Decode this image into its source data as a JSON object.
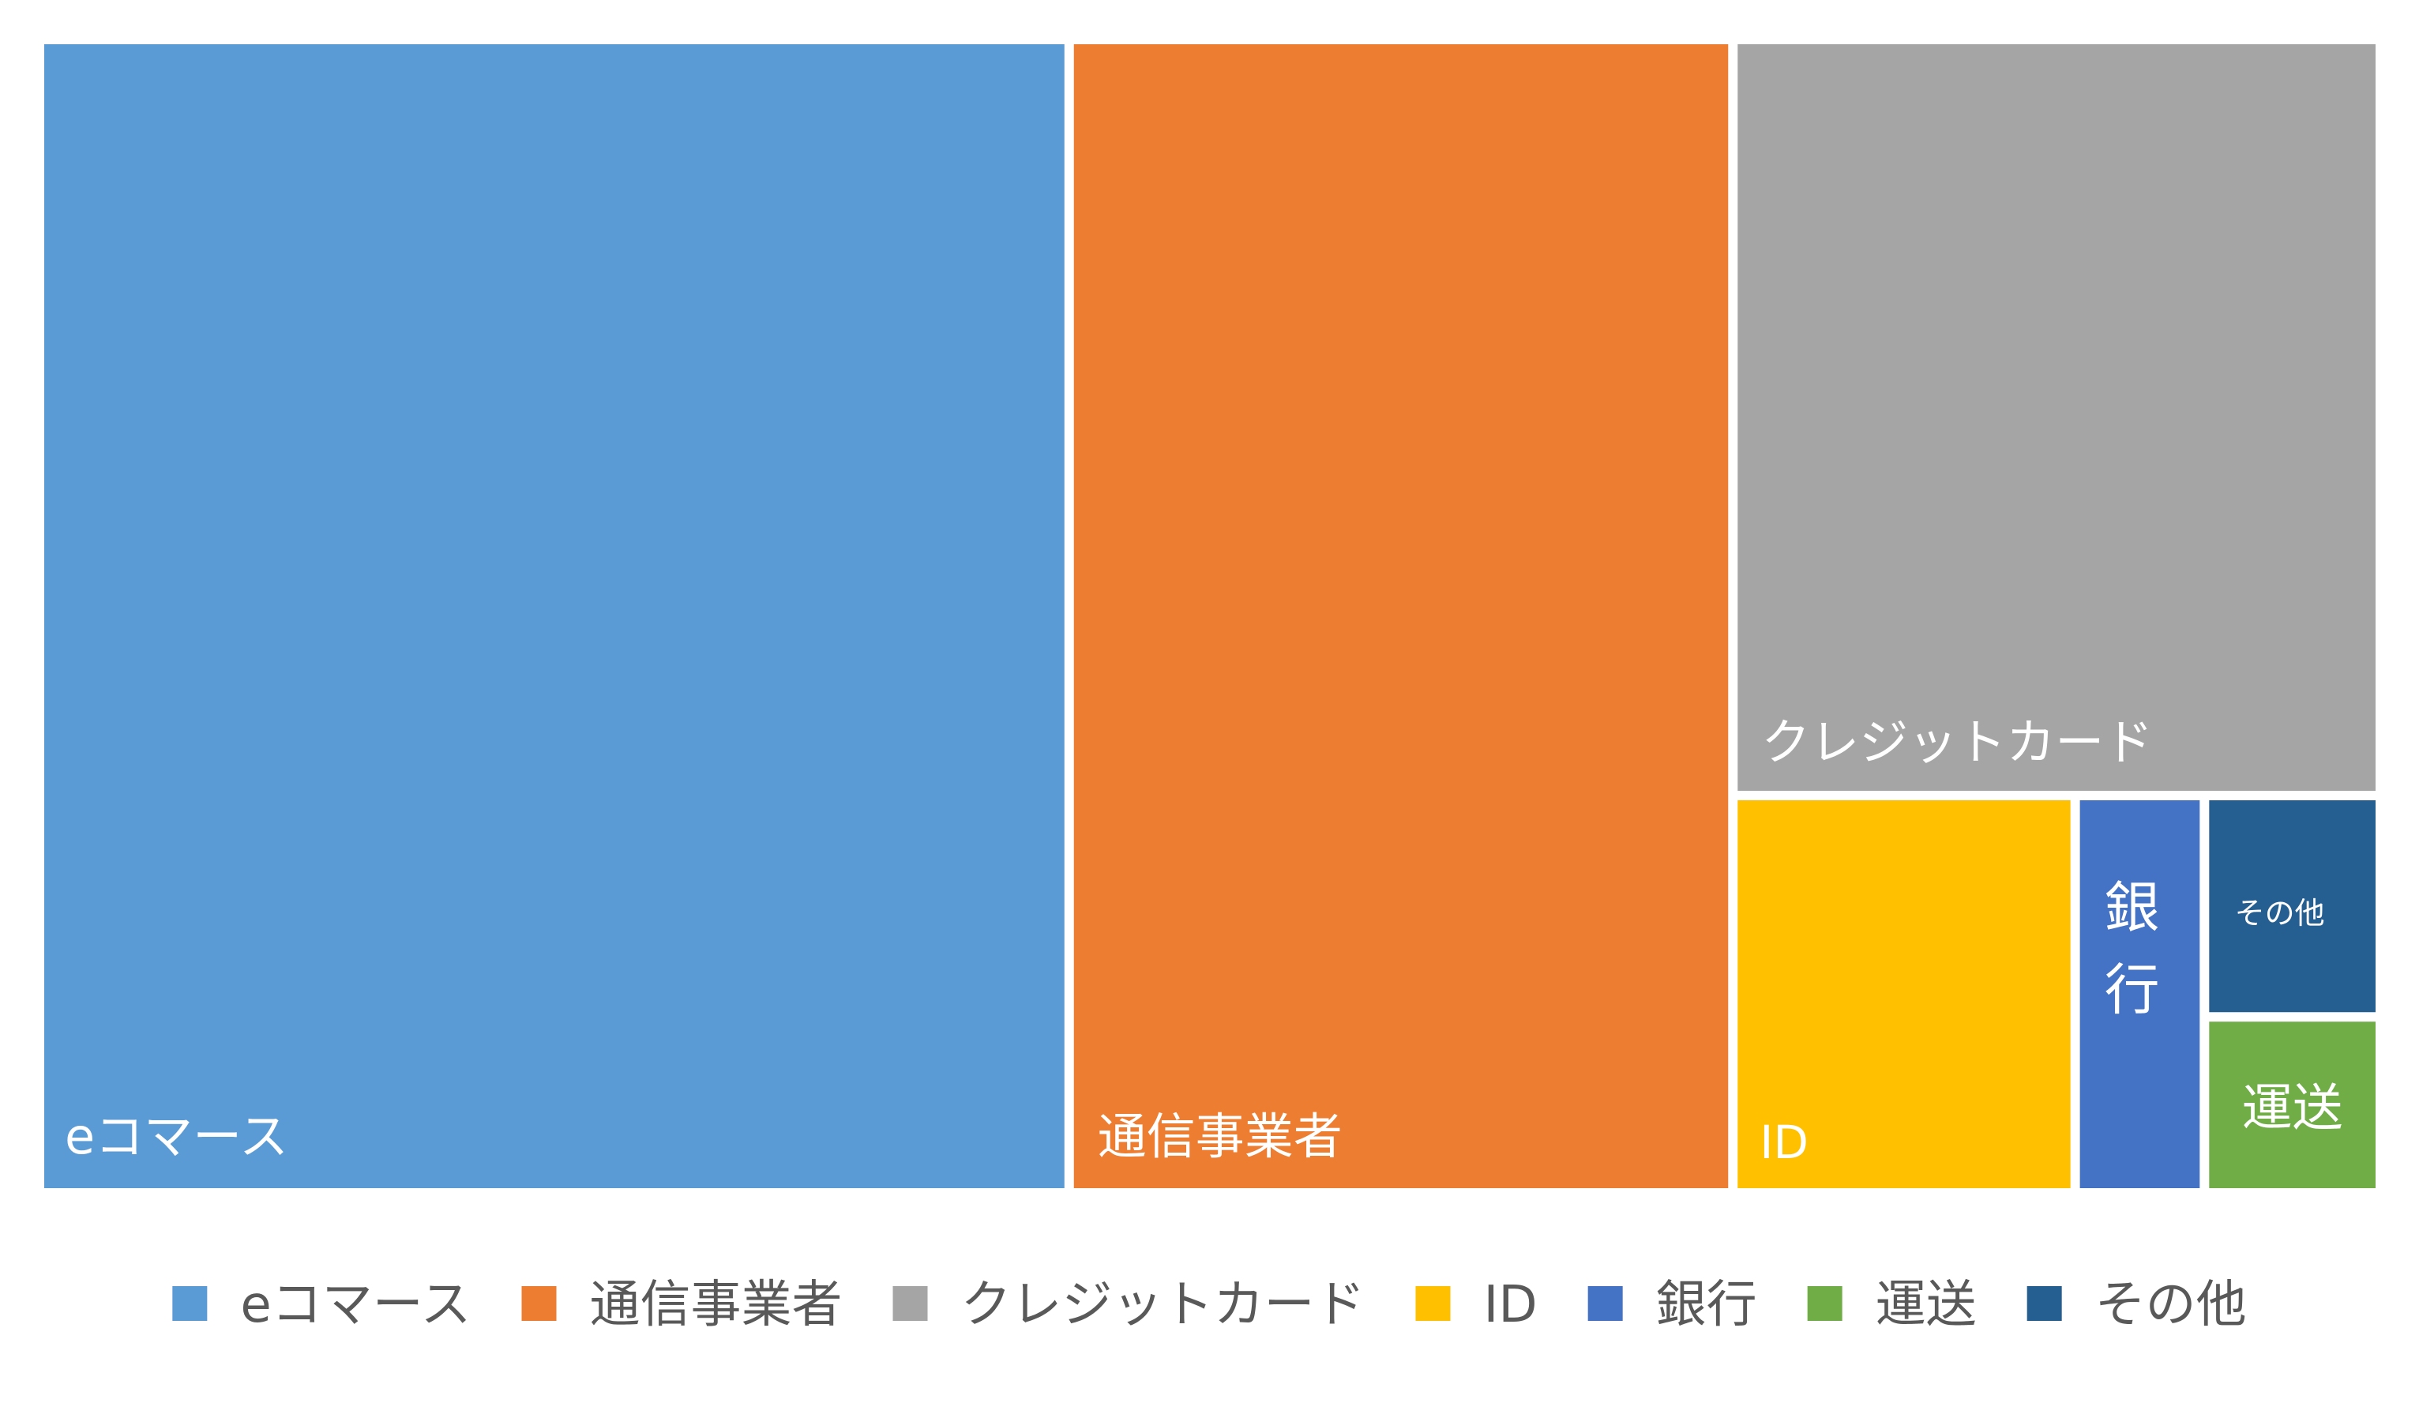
{
  "chart_data": {
    "type": "treemap",
    "series": [
      {
        "name": "eコマース",
        "value": 43.5,
        "color": "#5B9BD5"
      },
      {
        "name": "通信事業者",
        "value": 27.9,
        "color": "#ED7D31"
      },
      {
        "name": "クレジットカード",
        "value": 17.9,
        "color": "#A5A5A5"
      },
      {
        "name": "ID",
        "value": 5.0,
        "color": "#FFC000"
      },
      {
        "name": "銀行",
        "value": 1.8,
        "color": "#4472C4"
      },
      {
        "name": "運送",
        "value": 1.1,
        "color": "#70AD47"
      },
      {
        "name": "その他",
        "value": 1.4,
        "color": "#255E91"
      }
    ],
    "legend": {
      "position": "bottom",
      "entries": [
        "eコマース",
        "通信事業者",
        "クレジットカード",
        "ID",
        "銀行",
        "運送",
        "その他"
      ]
    }
  }
}
